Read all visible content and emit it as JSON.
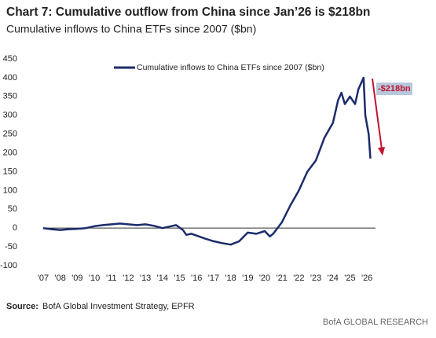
{
  "title": "Chart 7: Cumulative outflow from China since Jan’26 is $218bn",
  "subtitle": "Cumulative inflows to China ETFs since 2007 ($bn)",
  "source_label": "Source:",
  "source_text": "BofA Global Investment Strategy, EPFR",
  "footer": "BofA GLOBAL RESEARCH",
  "chart_data": {
    "type": "line",
    "x": [
      2007.0,
      2007.5,
      2008.0,
      2008.5,
      2009.0,
      2009.5,
      2010.0,
      2010.5,
      2011.0,
      2011.5,
      2012.0,
      2012.5,
      2013.0,
      2013.5,
      2014.0,
      2014.5,
      2014.8,
      2015.2,
      2015.4,
      2015.7,
      2016.0,
      2016.5,
      2017.0,
      2017.5,
      2018.0,
      2018.5,
      2019.0,
      2019.5,
      2020.0,
      2020.3,
      2020.5,
      2021.0,
      2021.5,
      2022.0,
      2022.5,
      2023.0,
      2023.5,
      2024.0,
      2024.3,
      2024.5,
      2024.7,
      2025.0,
      2025.3,
      2025.5,
      2025.8,
      2025.9,
      2026.1,
      2026.2
    ],
    "series": [
      {
        "name": "Cumulative inflows to China ETFs since 2007 ($bn)",
        "color": "#1c2b6b",
        "values": [
          0,
          -3,
          -5,
          -3,
          -2,
          0,
          5,
          8,
          10,
          12,
          10,
          8,
          10,
          6,
          0,
          5,
          8,
          -5,
          -18,
          -15,
          -20,
          -28,
          -35,
          -40,
          -44,
          -35,
          -12,
          -15,
          -8,
          -22,
          -15,
          15,
          60,
          100,
          150,
          180,
          240,
          280,
          340,
          360,
          330,
          350,
          330,
          370,
          400,
          300,
          250,
          185
        ]
      }
    ],
    "annotation": "-$218bn",
    "xlim": [
      2007,
      2026.5
    ],
    "xticks": [
      {
        "value": 2007,
        "label": "'07"
      },
      {
        "value": 2008,
        "label": "'08"
      },
      {
        "value": 2009,
        "label": "'09"
      },
      {
        "value": 2010,
        "label": "'10"
      },
      {
        "value": 2011,
        "label": "'11"
      },
      {
        "value": 2012,
        "label": "'12"
      },
      {
        "value": 2013,
        "label": "'13"
      },
      {
        "value": 2014,
        "label": "'14"
      },
      {
        "value": 2015,
        "label": "'15"
      },
      {
        "value": 2016,
        "label": "'16"
      },
      {
        "value": 2017,
        "label": "'17"
      },
      {
        "value": 2018,
        "label": "'18"
      },
      {
        "value": 2019,
        "label": "'19"
      },
      {
        "value": 2020,
        "label": "'20"
      },
      {
        "value": 2021,
        "label": "'21"
      },
      {
        "value": 2022,
        "label": "'22"
      },
      {
        "value": 2023,
        "label": "'23"
      },
      {
        "value": 2024,
        "label": "'24"
      },
      {
        "value": 2025,
        "label": "'25"
      },
      {
        "value": 2026,
        "label": "'26"
      }
    ],
    "ylim": [
      -100,
      450
    ],
    "yticks": [
      -100,
      -50,
      0,
      50,
      100,
      150,
      200,
      250,
      300,
      350,
      400,
      450
    ]
  }
}
